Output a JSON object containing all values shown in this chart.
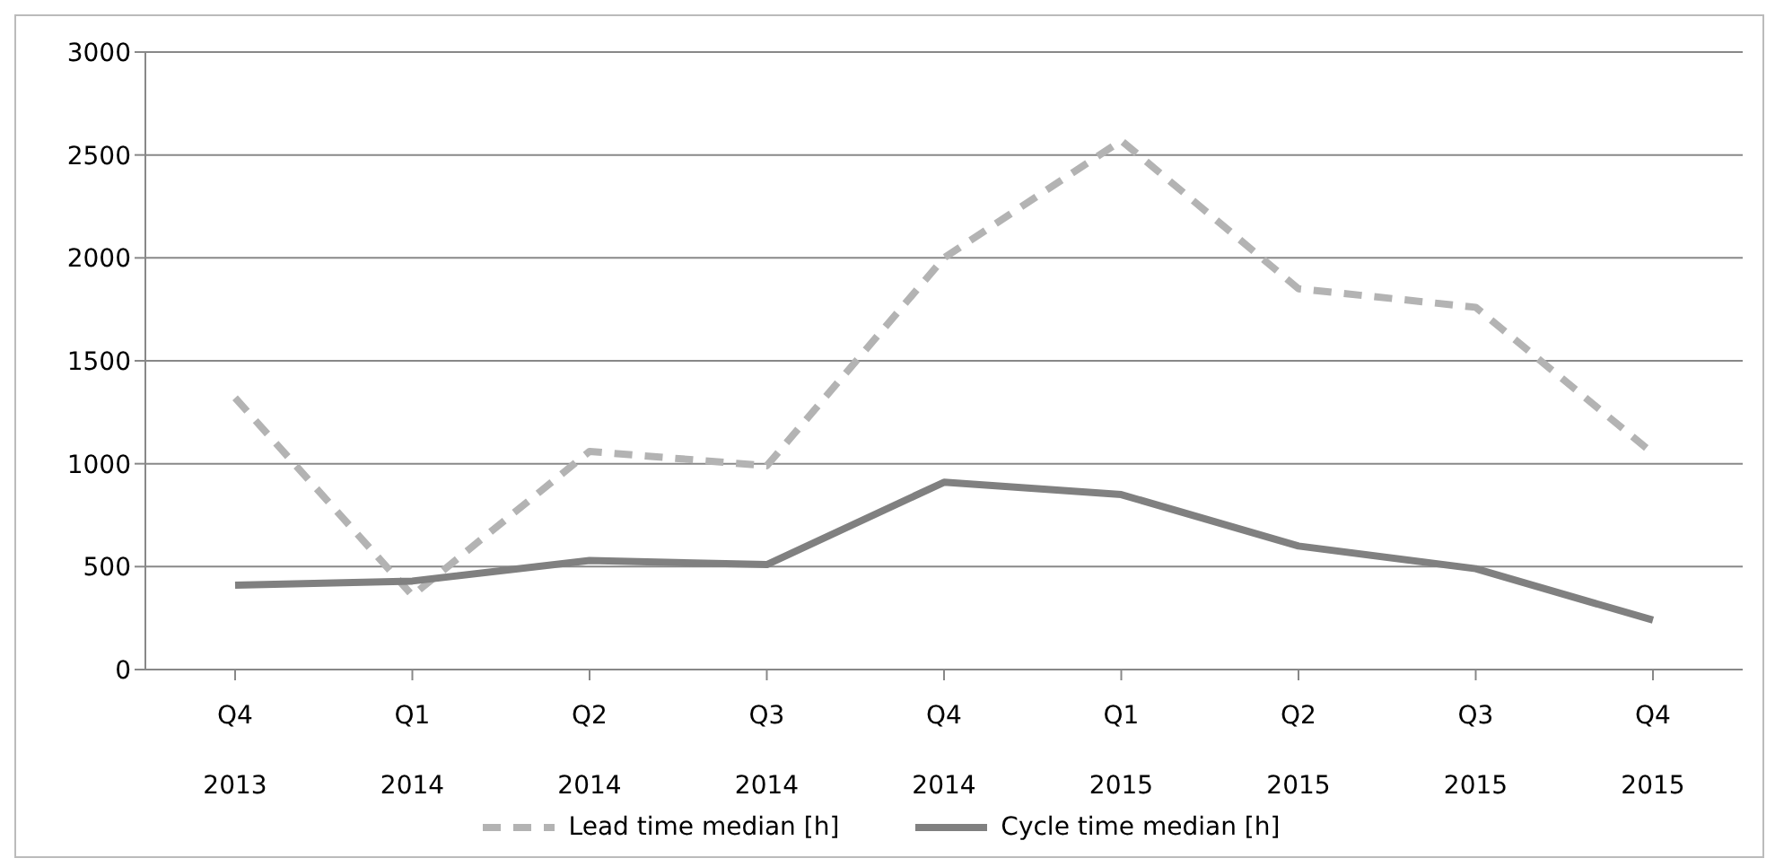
{
  "chart_data": {
    "type": "line",
    "categories": [
      "Q4 2013",
      "Q1 2014",
      "Q2 2014",
      "Q3 2014",
      "Q4 2014",
      "Q1 2015",
      "Q2 2015",
      "Q3 2015",
      "Q4 2015"
    ],
    "series": [
      {
        "name": "Lead time median [h]",
        "color": "#b3b3b3",
        "line_style": "dashed",
        "values": [
          1320,
          360,
          1060,
          990,
          2000,
          2570,
          1850,
          1760,
          1050
        ]
      },
      {
        "name": "Cycle time median [h]",
        "color": "#808080",
        "line_style": "solid",
        "values": [
          410,
          430,
          530,
          510,
          910,
          850,
          600,
          490,
          240
        ]
      }
    ],
    "ylim": [
      0,
      3000
    ],
    "yticks": [
      0,
      500,
      1000,
      1500,
      2000,
      2500,
      3000
    ],
    "grid": "y",
    "legend": "bottom",
    "marker": "none"
  }
}
